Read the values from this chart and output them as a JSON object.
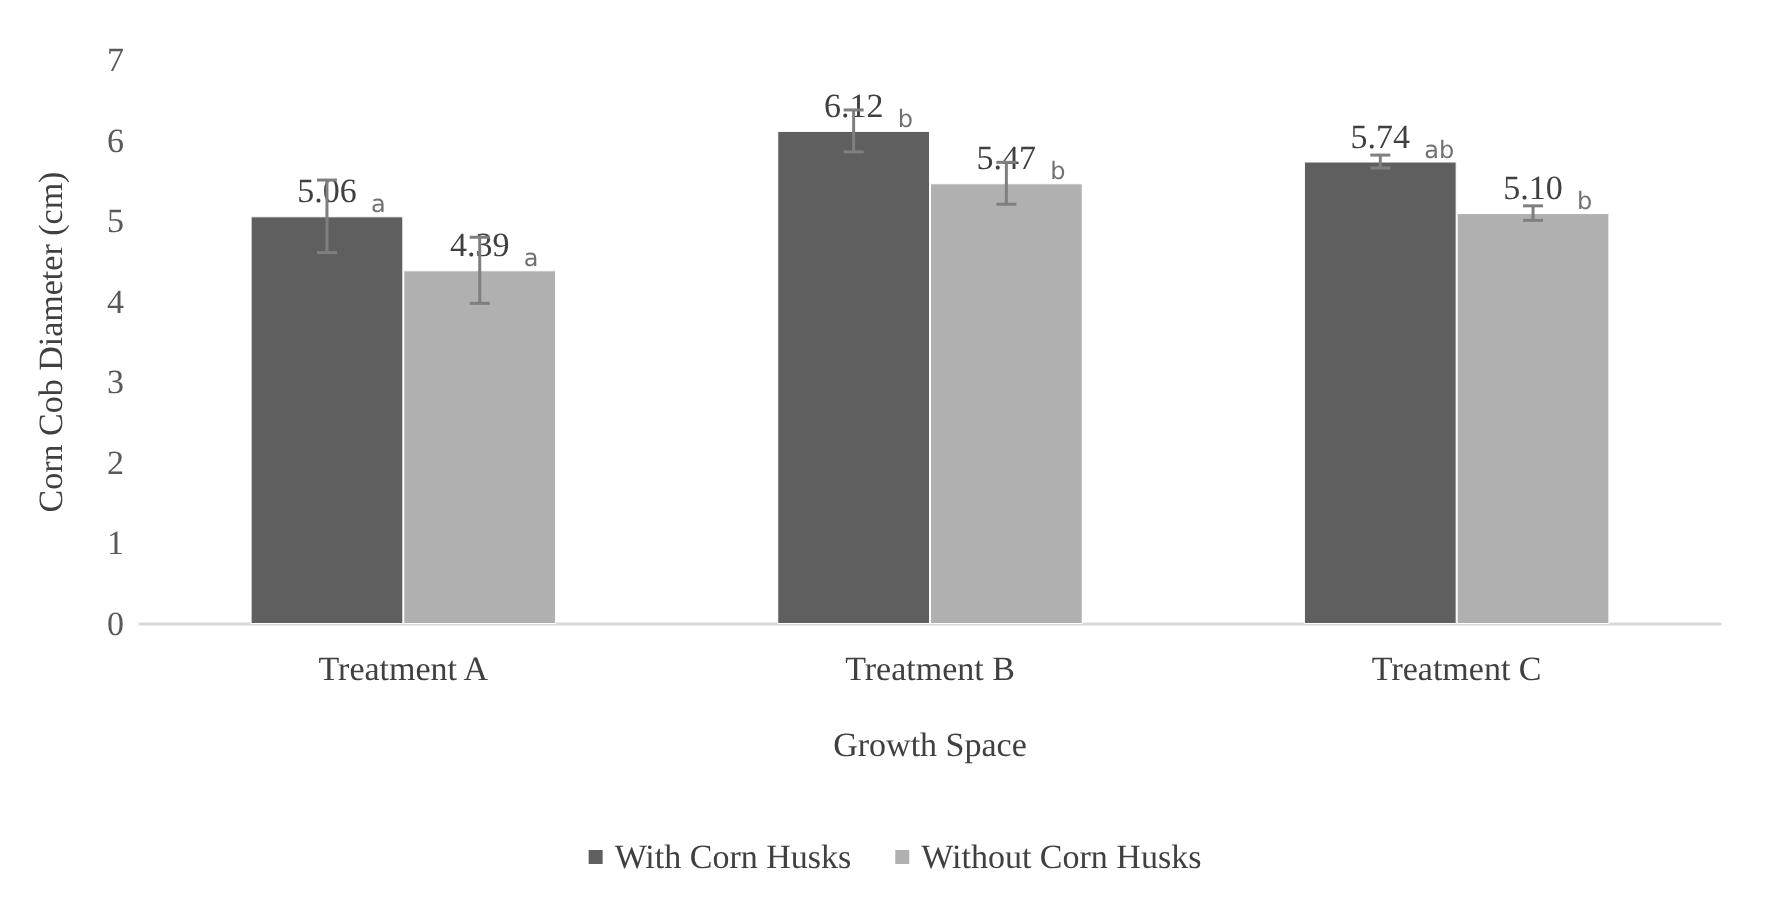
{
  "chart_data": {
    "type": "bar",
    "xlabel": "Growth Space",
    "ylabel": "Corn Cob Diameter (cm)",
    "categories": [
      "Treatment A",
      "Treatment B",
      "Treatment C"
    ],
    "series": [
      {
        "name": "With Corn Husks",
        "color": "#5f5f5f",
        "values": [
          5.06,
          6.12,
          5.74
        ],
        "errors": [
          0.45,
          0.26,
          0.08
        ],
        "value_labels": [
          "5.06",
          "6.12",
          "5.74"
        ]
      },
      {
        "name": "Without Corn Husks",
        "color": "#b0b0b0",
        "values": [
          4.39,
          5.47,
          5.1
        ],
        "errors": [
          0.41,
          0.26,
          0.09
        ],
        "value_labels": [
          "4.39",
          "5.47",
          "5.10"
        ]
      }
    ],
    "ylim": [
      0,
      7
    ],
    "yticks": [
      0,
      1,
      2,
      3,
      4,
      5,
      6,
      7
    ],
    "grid": false,
    "legend": "bottom",
    "annotations": [
      "a",
      "a",
      "b",
      "b",
      "ab",
      "b"
    ]
  }
}
